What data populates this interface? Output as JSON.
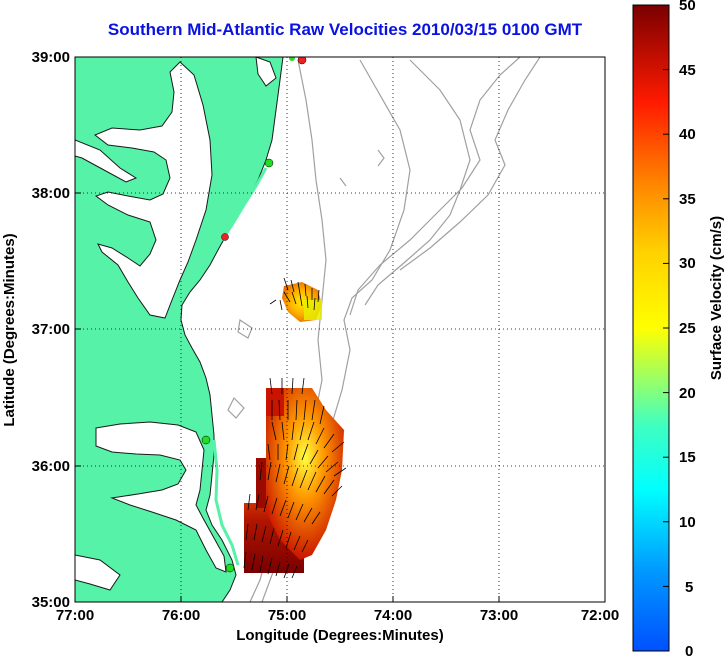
{
  "title": "Southern Mid-Atlantic Raw Velocities 2010/03/15 0100 GMT",
  "x_axis": {
    "label": "Longitude (Degrees:Minutes)",
    "ticks": [
      "77:00",
      "76:00",
      "75:00",
      "74:00",
      "73:00",
      "72:00"
    ]
  },
  "y_axis": {
    "label": "Latitude (Degrees:Minutes)",
    "ticks": [
      "39:00",
      "38:00",
      "37:00",
      "36:00",
      "35:00"
    ]
  },
  "colorbar": {
    "label": "Surface Velocity (cm/s)",
    "ticks": [
      "50",
      "45",
      "40",
      "35",
      "30",
      "25",
      "20",
      "15",
      "10",
      "5",
      "0"
    ],
    "range": [
      0,
      50
    ],
    "colormap": "jet"
  },
  "colors": {
    "land": "#55f2a8",
    "coastline": "#1a1a1a",
    "bathymetry": "#a0a0a0",
    "title": "#0a12e0",
    "station_active": "#22dd22",
    "station_inactive": "#ee2222"
  },
  "grid": "dotted",
  "stations": [
    {
      "status": "inactive",
      "lon": -75.0,
      "lat": 39.0
    },
    {
      "status": "active",
      "lon": -75.15,
      "lat": 38.22
    },
    {
      "status": "inactive",
      "lon": -75.58,
      "lat": 37.7
    },
    {
      "status": "active",
      "lon": -75.72,
      "lat": 36.2
    },
    {
      "status": "active",
      "lon": -75.55,
      "lat": 35.3
    }
  ]
}
